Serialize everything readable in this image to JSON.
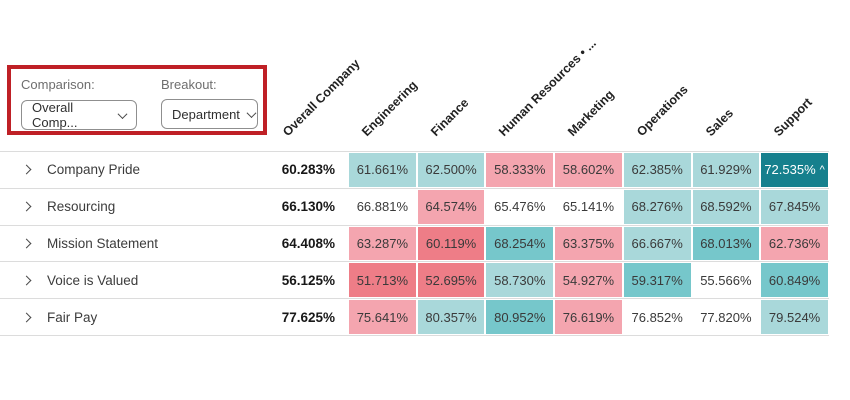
{
  "filters": {
    "comparison": {
      "label": "Comparison:",
      "value": "Overall Comp..."
    },
    "breakout": {
      "label": "Breakout:",
      "value": "Department"
    }
  },
  "table": {
    "overall_column": "Overall Company",
    "breakout_columns": [
      "Engineering",
      "Finance",
      "Human Resources • ...",
      "Marketing",
      "Operations",
      "Sales",
      "Support"
    ],
    "rows": [
      {
        "label": "Company Pride",
        "overall": "60.283%",
        "cells": [
          {
            "value": "61.661%",
            "tone": "teal-light"
          },
          {
            "value": "62.500%",
            "tone": "teal-light"
          },
          {
            "value": "58.333%",
            "tone": "pink"
          },
          {
            "value": "58.602%",
            "tone": "pink"
          },
          {
            "value": "62.385%",
            "tone": "teal-light"
          },
          {
            "value": "61.929%",
            "tone": "teal-light"
          },
          {
            "value": "72.535%",
            "marker": "^",
            "tone": "teal-dark"
          }
        ]
      },
      {
        "label": "Resourcing",
        "overall": "66.130%",
        "cells": [
          {
            "value": "66.881%",
            "tone": "white"
          },
          {
            "value": "64.574%",
            "tone": "pink"
          },
          {
            "value": "65.476%",
            "tone": "white"
          },
          {
            "value": "65.141%",
            "tone": "white"
          },
          {
            "value": "68.276%",
            "tone": "teal-light"
          },
          {
            "value": "68.592%",
            "tone": "teal-light"
          },
          {
            "value": "67.845%",
            "tone": "teal-light"
          }
        ]
      },
      {
        "label": "Mission Statement",
        "overall": "64.408%",
        "cells": [
          {
            "value": "63.287%",
            "tone": "pink"
          },
          {
            "value": "60.119%",
            "tone": "red"
          },
          {
            "value": "68.254%",
            "tone": "teal-med"
          },
          {
            "value": "63.375%",
            "tone": "pink"
          },
          {
            "value": "66.667%",
            "tone": "teal-light"
          },
          {
            "value": "68.013%",
            "tone": "teal-med"
          },
          {
            "value": "62.736%",
            "tone": "pink"
          }
        ]
      },
      {
        "label": "Voice is Valued",
        "overall": "56.125%",
        "cells": [
          {
            "value": "51.713%",
            "tone": "red"
          },
          {
            "value": "52.695%",
            "tone": "red"
          },
          {
            "value": "58.730%",
            "tone": "teal-light"
          },
          {
            "value": "54.927%",
            "tone": "pink"
          },
          {
            "value": "59.317%",
            "tone": "teal-med"
          },
          {
            "value": "55.566%",
            "tone": "white"
          },
          {
            "value": "60.849%",
            "tone": "teal-med"
          }
        ]
      },
      {
        "label": "Fair Pay",
        "overall": "77.625%",
        "cells": [
          {
            "value": "75.641%",
            "tone": "pink"
          },
          {
            "value": "80.357%",
            "tone": "teal-light"
          },
          {
            "value": "80.952%",
            "tone": "teal-med"
          },
          {
            "value": "76.619%",
            "tone": "pink"
          },
          {
            "value": "76.852%",
            "tone": "white"
          },
          {
            "value": "77.820%",
            "tone": "white"
          },
          {
            "value": "79.524%",
            "tone": "teal-light"
          }
        ]
      }
    ]
  },
  "colors": {
    "teal-dark": "#16808d",
    "teal-med": "#76c7cb",
    "teal-light": "#a9d8da",
    "white": "#ffffff",
    "pink": "#f4a5af",
    "red": "#ee7d87",
    "highlight_box": "#bf2026",
    "grid_line": "#dcdcdc"
  }
}
